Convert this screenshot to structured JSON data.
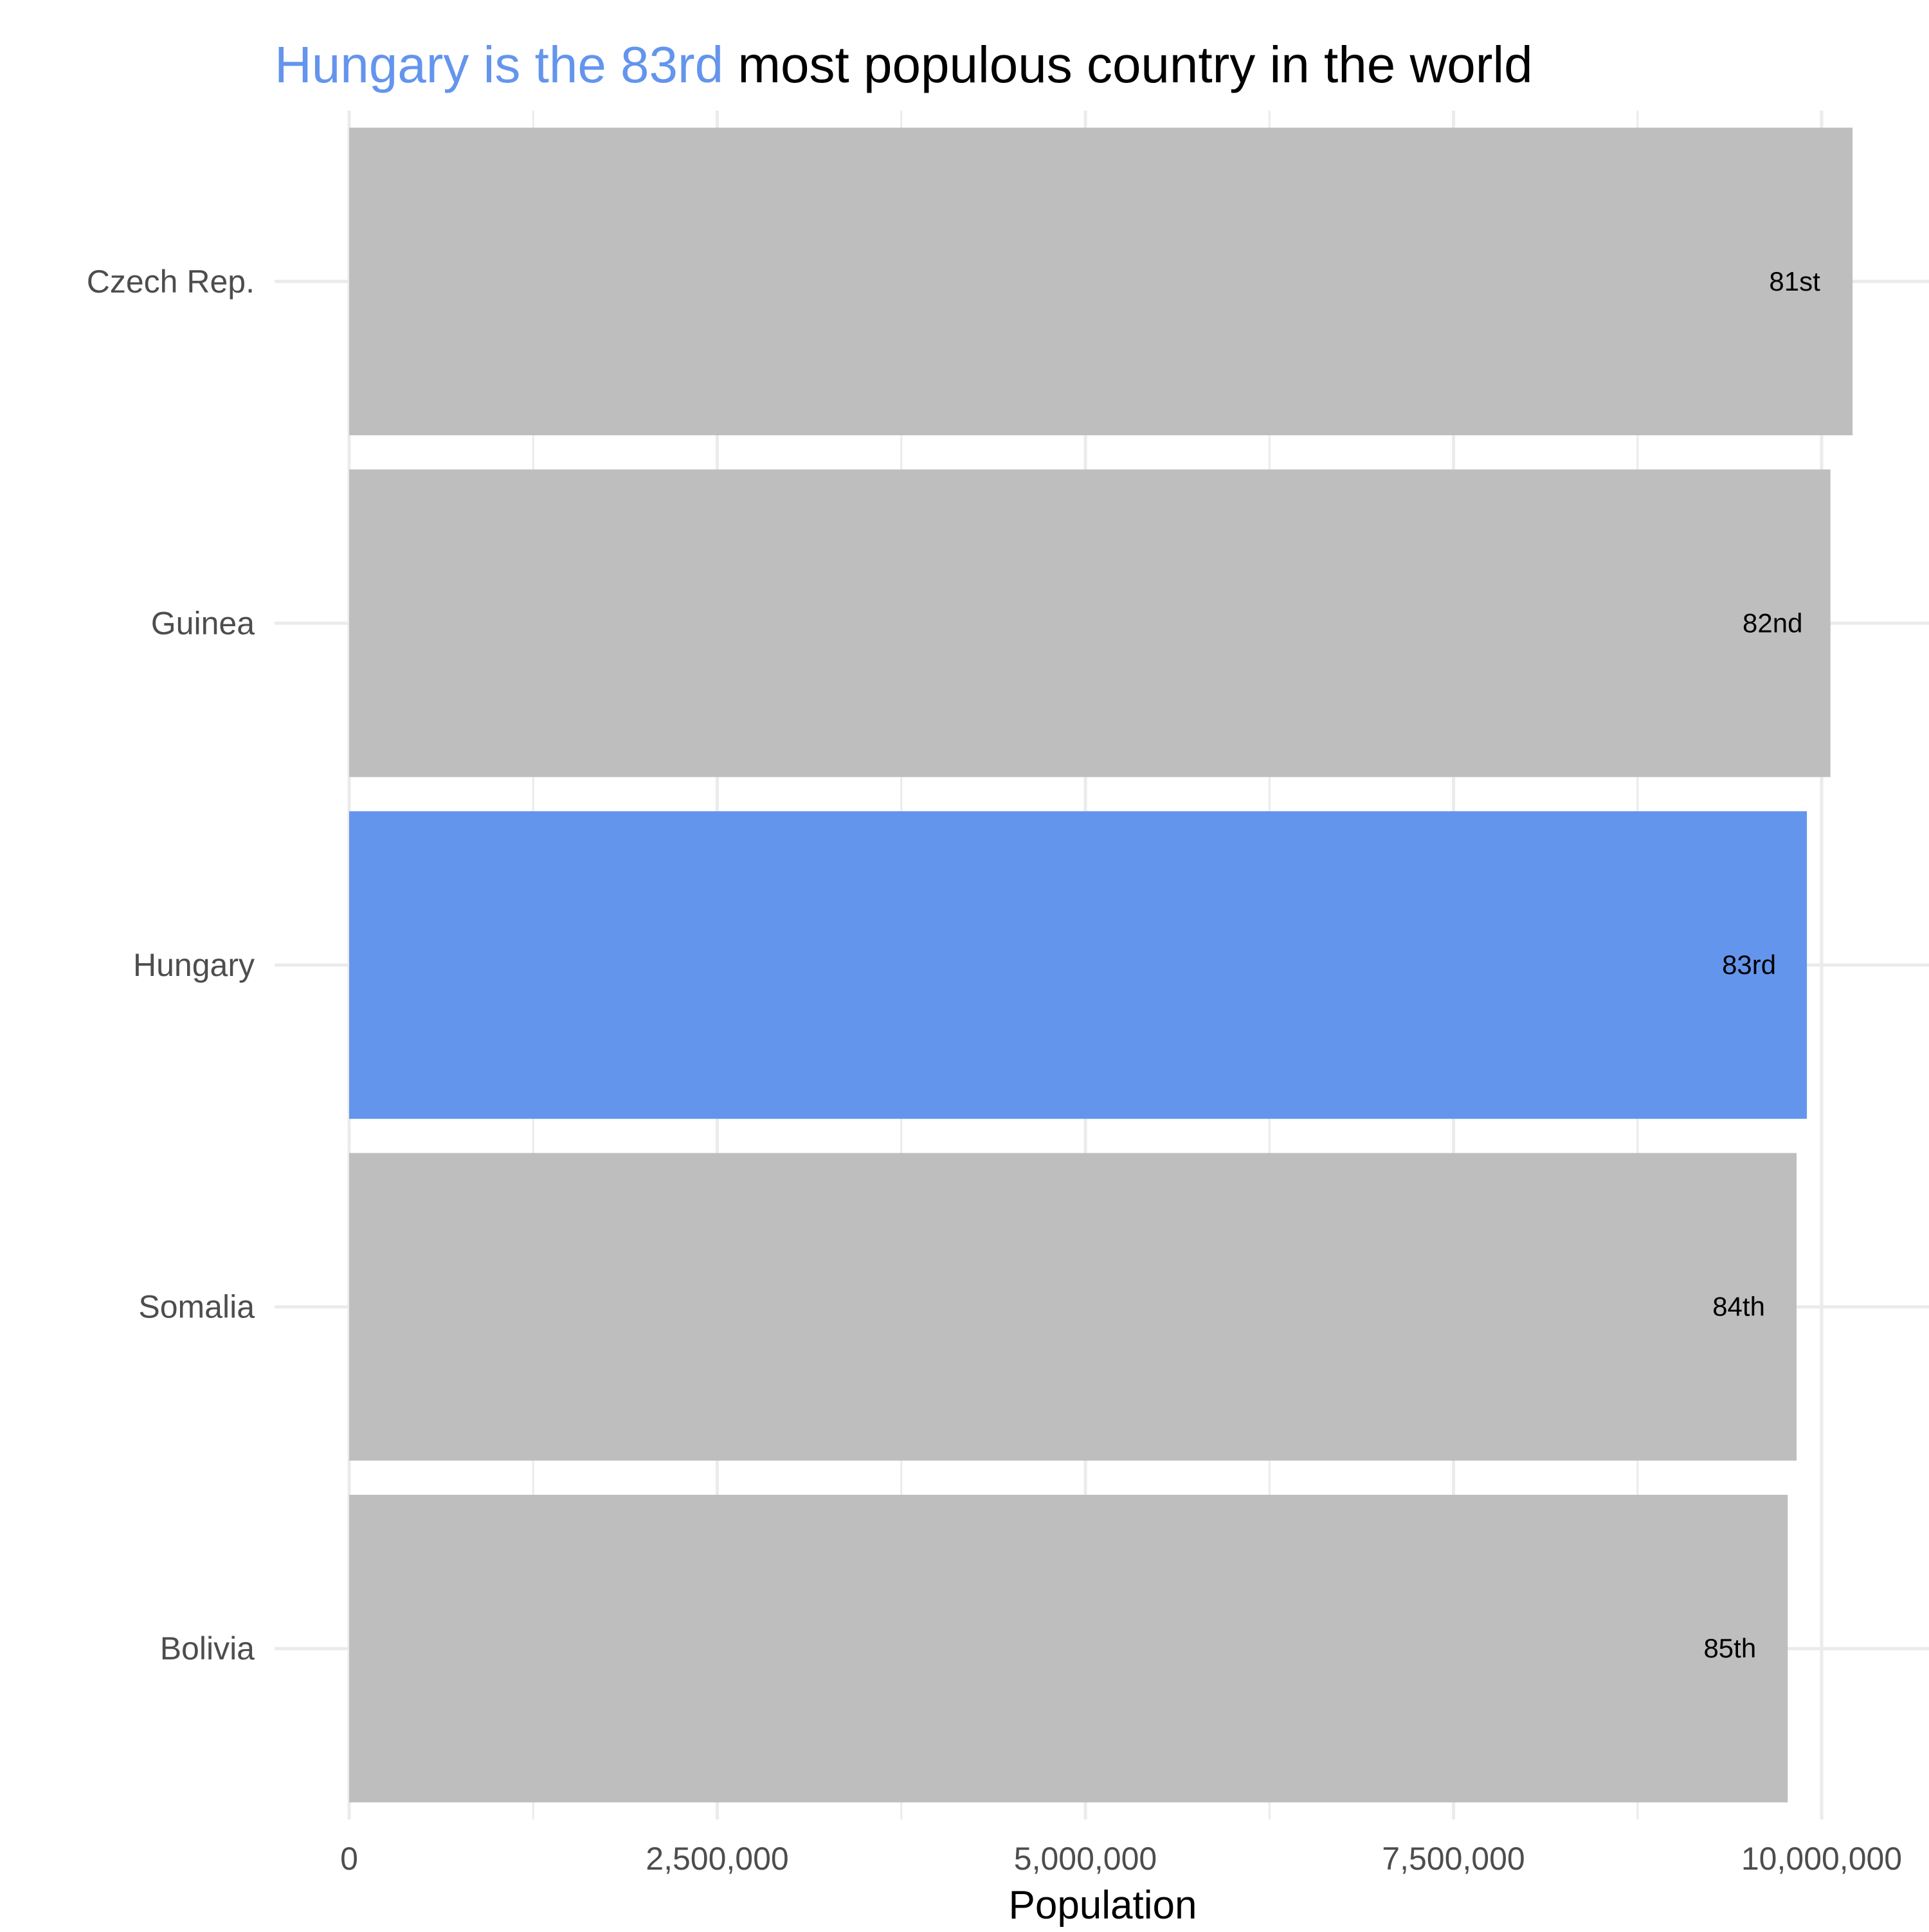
{
  "chart_data": {
    "type": "bar",
    "orientation": "horizontal",
    "title_highlight": "Hungary is the 83rd",
    "title_rest": " most populous country in the world",
    "title": "Hungary is the 83rd most populous country in the world",
    "xlabel": "Population",
    "ylabel": "",
    "xlim": [
      0,
      10500000
    ],
    "xticks": [
      0,
      2500000,
      5000000,
      7500000,
      10000000
    ],
    "xtick_labels": [
      "0",
      "2,500,000",
      "5,000,000",
      "7,500,000",
      "10,000,000"
    ],
    "categories": [
      "Czech Rep.",
      "Guinea",
      "Hungary",
      "Somalia",
      "Bolivia"
    ],
    "values": [
      10210000,
      10060000,
      9900000,
      9830000,
      9770000
    ],
    "bar_labels": [
      "81st",
      "82nd",
      "83rd",
      "84th",
      "85th"
    ],
    "highlight": "Hungary",
    "grid": true,
    "legend": "none",
    "colors": {
      "default_bar": "#bebebe",
      "highlight_bar": "#6495ed",
      "grid": "#ebebeb",
      "tick_text": "#4d4d4d",
      "title_text": "#000000"
    }
  }
}
